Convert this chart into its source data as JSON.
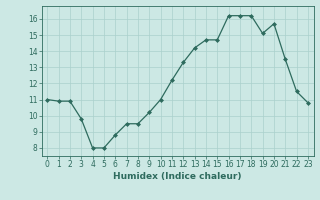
{
  "x": [
    0,
    1,
    2,
    3,
    4,
    5,
    6,
    7,
    8,
    9,
    10,
    11,
    12,
    13,
    14,
    15,
    16,
    17,
    18,
    19,
    20,
    21,
    22,
    23
  ],
  "y": [
    11.0,
    10.9,
    10.9,
    9.8,
    8.0,
    8.0,
    8.8,
    9.5,
    9.5,
    10.2,
    11.0,
    12.2,
    13.3,
    14.2,
    14.7,
    14.7,
    16.2,
    16.2,
    16.2,
    15.1,
    15.7,
    13.5,
    11.5,
    10.8
  ],
  "line_color": "#2e6b5e",
  "marker": "D",
  "marker_size": 2.0,
  "bg_color": "#cce8e4",
  "grid_color": "#aad0cc",
  "xlabel": "Humidex (Indice chaleur)",
  "ylim": [
    7.5,
    16.8
  ],
  "xlim": [
    -0.5,
    23.5
  ],
  "yticks": [
    8,
    9,
    10,
    11,
    12,
    13,
    14,
    15,
    16
  ],
  "xticks": [
    0,
    1,
    2,
    3,
    4,
    5,
    6,
    7,
    8,
    9,
    10,
    11,
    12,
    13,
    14,
    15,
    16,
    17,
    18,
    19,
    20,
    21,
    22,
    23
  ],
  "tick_color": "#2e6b5e",
  "label_fontsize": 6.5,
  "tick_fontsize": 5.5,
  "linewidth": 0.9
}
